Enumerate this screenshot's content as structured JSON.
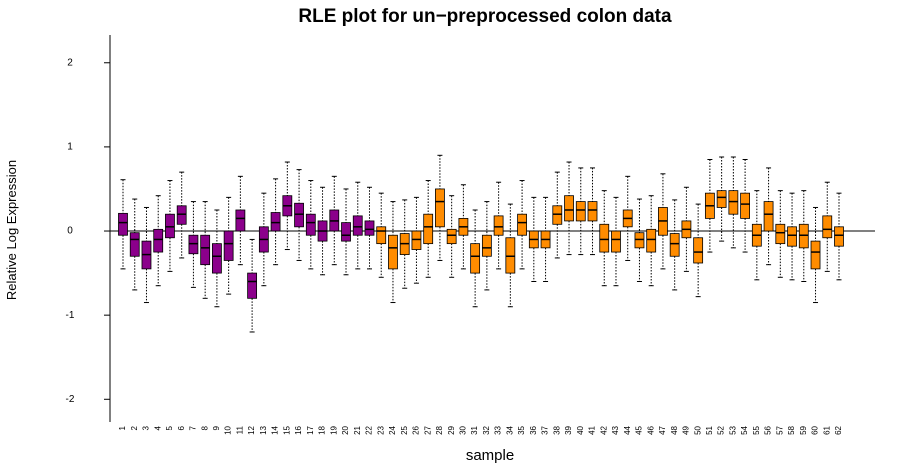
{
  "chart_data": {
    "type": "boxplot",
    "title": "RLE plot for un−preprocessed colon data",
    "x_label": "sample",
    "y_label": "Relative Log Expression",
    "categories": [
      "1",
      "2",
      "3",
      "4",
      "5",
      "6",
      "7",
      "8",
      "9",
      "10",
      "11",
      "12",
      "13",
      "14",
      "15",
      "16",
      "17",
      "18",
      "19",
      "20",
      "21",
      "22",
      "23",
      "24",
      "25",
      "26",
      "27",
      "28",
      "29",
      "30",
      "31",
      "32",
      "33",
      "34",
      "35",
      "36",
      "37",
      "38",
      "39",
      "40",
      "41",
      "42",
      "43",
      "44",
      "45",
      "46",
      "47",
      "48",
      "49",
      "50",
      "51",
      "52",
      "53",
      "54",
      "55",
      "56",
      "57",
      "58",
      "59",
      "60",
      "61",
      "62"
    ],
    "low": [
      -0.45,
      -0.7,
      -0.85,
      -0.65,
      -0.48,
      -0.32,
      -0.67,
      -0.8,
      -0.9,
      -0.75,
      -0.4,
      -1.2,
      -0.65,
      -0.4,
      -0.22,
      -0.35,
      -0.45,
      -0.52,
      -0.4,
      -0.52,
      -0.45,
      -0.45,
      -0.55,
      -0.85,
      -0.68,
      -0.62,
      -0.55,
      -0.35,
      -0.55,
      -0.45,
      -0.9,
      -0.7,
      -0.45,
      -0.9,
      -0.45,
      -0.6,
      -0.6,
      -0.32,
      -0.28,
      -0.28,
      -0.28,
      -0.65,
      -0.65,
      -0.35,
      -0.6,
      -0.65,
      -0.45,
      -0.7,
      -0.48,
      -0.78,
      -0.25,
      -0.12,
      -0.2,
      -0.25,
      -0.58,
      -0.4,
      -0.55,
      -0.58,
      -0.6,
      -0.85,
      -0.48,
      -0.58
    ],
    "q1": [
      -0.05,
      -0.3,
      -0.45,
      -0.25,
      -0.08,
      0.08,
      -0.27,
      -0.4,
      -0.5,
      -0.35,
      0,
      -0.8,
      -0.25,
      0,
      0.18,
      0.05,
      -0.05,
      -0.12,
      0,
      -0.12,
      -0.05,
      -0.05,
      -0.15,
      -0.45,
      -0.28,
      -0.22,
      -0.15,
      0.05,
      -0.15,
      -0.05,
      -0.5,
      -0.3,
      -0.05,
      -0.5,
      -0.05,
      -0.2,
      -0.2,
      0.08,
      0.12,
      0.12,
      0.12,
      -0.25,
      -0.25,
      0.05,
      -0.2,
      -0.25,
      -0.05,
      -0.3,
      -0.08,
      -0.38,
      0.15,
      0.28,
      0.2,
      0.15,
      -0.18,
      0,
      -0.15,
      -0.18,
      -0.2,
      -0.45,
      -0.08,
      -0.18
    ],
    "median": [
      0.1,
      -0.1,
      -0.28,
      -0.1,
      0.05,
      0.2,
      -0.15,
      -0.2,
      -0.3,
      -0.15,
      0.15,
      -0.6,
      -0.1,
      0.1,
      0.3,
      0.2,
      0.1,
      0,
      0.12,
      -0.05,
      0.05,
      0.02,
      0,
      -0.2,
      -0.15,
      -0.1,
      0.05,
      0.35,
      -0.05,
      0.05,
      -0.3,
      -0.2,
      0.05,
      -0.3,
      0.1,
      -0.1,
      -0.1,
      0.2,
      0.25,
      0.25,
      0.25,
      -0.1,
      -0.1,
      0.15,
      -0.1,
      -0.1,
      0.12,
      -0.15,
      0.02,
      -0.25,
      0.3,
      0.4,
      0.35,
      0.32,
      -0.05,
      0.2,
      -0.02,
      -0.05,
      -0.05,
      -0.25,
      0.02,
      -0.05
    ],
    "q3": [
      0.21,
      -0.02,
      -0.12,
      0.02,
      0.2,
      0.3,
      -0.05,
      -0.05,
      -0.15,
      0,
      0.25,
      -0.5,
      0.05,
      0.22,
      0.42,
      0.33,
      0.2,
      0.12,
      0.25,
      0.1,
      0.18,
      0.12,
      0.05,
      -0.05,
      -0.03,
      0,
      0.2,
      0.5,
      0.02,
      0.15,
      -0.15,
      -0.05,
      0.18,
      -0.08,
      0.2,
      0,
      0,
      0.3,
      0.42,
      0.35,
      0.35,
      0.08,
      0,
      0.25,
      -0.02,
      0.02,
      0.28,
      -0.03,
      0.12,
      -0.08,
      0.45,
      0.48,
      0.48,
      0.45,
      0.08,
      0.35,
      0.08,
      0.05,
      0.08,
      -0.12,
      0.18,
      0.05
    ],
    "high": [
      0.61,
      0.38,
      0.28,
      0.42,
      0.6,
      0.7,
      0.35,
      0.35,
      0.25,
      0.4,
      0.65,
      -0.1,
      0.45,
      0.62,
      0.82,
      0.73,
      0.6,
      0.52,
      0.65,
      0.5,
      0.58,
      0.52,
      0.45,
      0.35,
      0.37,
      0.4,
      0.6,
      0.9,
      0.42,
      0.55,
      0.25,
      0.35,
      0.58,
      0.32,
      0.6,
      0.4,
      0.4,
      0.7,
      0.82,
      0.75,
      0.75,
      0.48,
      0.4,
      0.65,
      0.38,
      0.42,
      0.68,
      0.37,
      0.52,
      0.32,
      0.85,
      0.88,
      0.88,
      0.85,
      0.48,
      0.75,
      0.48,
      0.45,
      0.48,
      0.28,
      0.58,
      0.45
    ],
    "colors": [
      "#8b008b",
      "#8b008b",
      "#8b008b",
      "#8b008b",
      "#8b008b",
      "#8b008b",
      "#8b008b",
      "#8b008b",
      "#8b008b",
      "#8b008b",
      "#8b008b",
      "#8b008b",
      "#8b008b",
      "#8b008b",
      "#8b008b",
      "#8b008b",
      "#8b008b",
      "#8b008b",
      "#8b008b",
      "#8b008b",
      "#8b008b",
      "#8b008b",
      "#ff8c00",
      "#ff8c00",
      "#ff8c00",
      "#ff8c00",
      "#ff8c00",
      "#ff8c00",
      "#ff8c00",
      "#ff8c00",
      "#ff8c00",
      "#ff8c00",
      "#ff8c00",
      "#ff8c00",
      "#ff8c00",
      "#ff8c00",
      "#ff8c00",
      "#ff8c00",
      "#ff8c00",
      "#ff8c00",
      "#ff8c00",
      "#ff8c00",
      "#ff8c00",
      "#ff8c00",
      "#ff8c00",
      "#ff8c00",
      "#ff8c00",
      "#ff8c00",
      "#ff8c00",
      "#ff8c00",
      "#ff8c00",
      "#ff8c00",
      "#ff8c00",
      "#ff8c00",
      "#ff8c00",
      "#ff8c00",
      "#ff8c00",
      "#ff8c00",
      "#ff8c00",
      "#ff8c00",
      "#ff8c00",
      "#ff8c00"
    ],
    "ylim": [
      -2.27,
      2.33
    ],
    "yticks": [
      -2,
      -1,
      0,
      1,
      2
    ],
    "hline": 0
  }
}
